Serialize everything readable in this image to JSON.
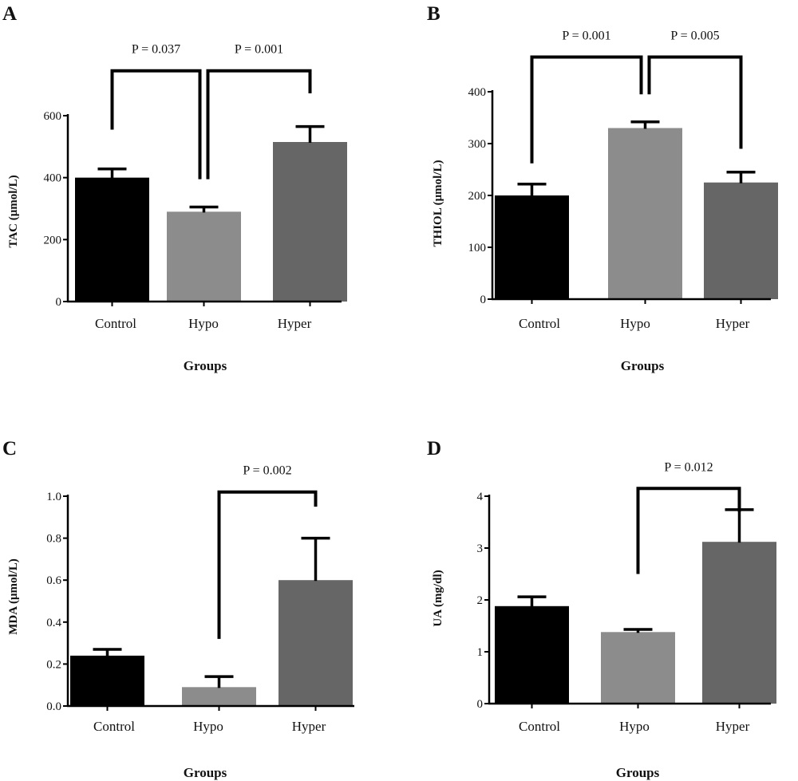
{
  "colors": {
    "Control": "#000000",
    "Hypo": "#8c8c8c",
    "Hyper": "#666666",
    "axis": "#000000"
  },
  "chart_data": [
    {
      "type": "bar",
      "panel_label": "A",
      "categories": [
        "Control",
        "Hypo",
        "Hyper"
      ],
      "values": [
        400,
        290,
        515
      ],
      "errors": [
        28,
        15,
        50
      ],
      "ylabel": "TAC (μmol/L)",
      "xlabel": "Groups",
      "ylim": [
        0,
        600
      ],
      "yticks": [
        "0",
        "200",
        "400",
        "600"
      ],
      "grid": false,
      "comparisons": [
        {
          "label": "P = 0.037",
          "from": 0,
          "to": 1,
          "y": 745,
          "left_end": 555,
          "right_end": 395
        },
        {
          "label": "P = 0.001",
          "from": 1,
          "to": 2,
          "y": 745,
          "left_end": 395,
          "right_end": 672
        }
      ]
    },
    {
      "type": "bar",
      "panel_label": "B",
      "categories": [
        "Control",
        "Hypo",
        "Hyper"
      ],
      "values": [
        200,
        330,
        225
      ],
      "errors": [
        22,
        12,
        20
      ],
      "ylabel": "THIOL (μmol/L)",
      "xlabel": "Groups",
      "ylim": [
        0,
        400
      ],
      "yticks": [
        "0",
        "100",
        "200",
        "300",
        "400"
      ],
      "grid": false,
      "comparisons": [
        {
          "label": "P = 0.001",
          "from": 0,
          "to": 1,
          "y": 467,
          "left_end": 262,
          "right_end": 395
        },
        {
          "label": "P = 0.005",
          "from": 1,
          "to": 2,
          "y": 467,
          "left_end": 395,
          "right_end": 290
        }
      ]
    },
    {
      "type": "bar",
      "panel_label": "C",
      "categories": [
        "Control",
        "Hypo",
        "Hyper"
      ],
      "values": [
        0.24,
        0.09,
        0.6
      ],
      "errors": [
        0.03,
        0.05,
        0.2
      ],
      "ylabel": "MDA (μmol/L)",
      "xlabel": "Groups",
      "ylim": [
        0,
        1.0
      ],
      "yticks": [
        "0.0",
        "0.2",
        "0.4",
        "0.6",
        "0.8",
        "1.0"
      ],
      "grid": false,
      "comparisons": [
        {
          "label": "P = 0.002",
          "from": 1,
          "to": 2,
          "y": 1.02,
          "left_end": 0.32,
          "right_end": 0.95
        }
      ]
    },
    {
      "type": "bar",
      "panel_label": "D",
      "categories": [
        "Control",
        "Hypo",
        "Hyper"
      ],
      "values": [
        1.88,
        1.38,
        3.12
      ],
      "errors": [
        0.18,
        0.05,
        0.62
      ],
      "ylabel": "UA (mg/dl)",
      "xlabel": "Groups",
      "ylim": [
        0,
        4
      ],
      "yticks": [
        "0",
        "1",
        "2",
        "3",
        "4"
      ],
      "grid": false,
      "comparisons": [
        {
          "label": "P = 0.012",
          "from": 1,
          "to": 2,
          "y": 4.15,
          "left_end": 2.5,
          "right_end": 3.7
        }
      ]
    }
  ]
}
